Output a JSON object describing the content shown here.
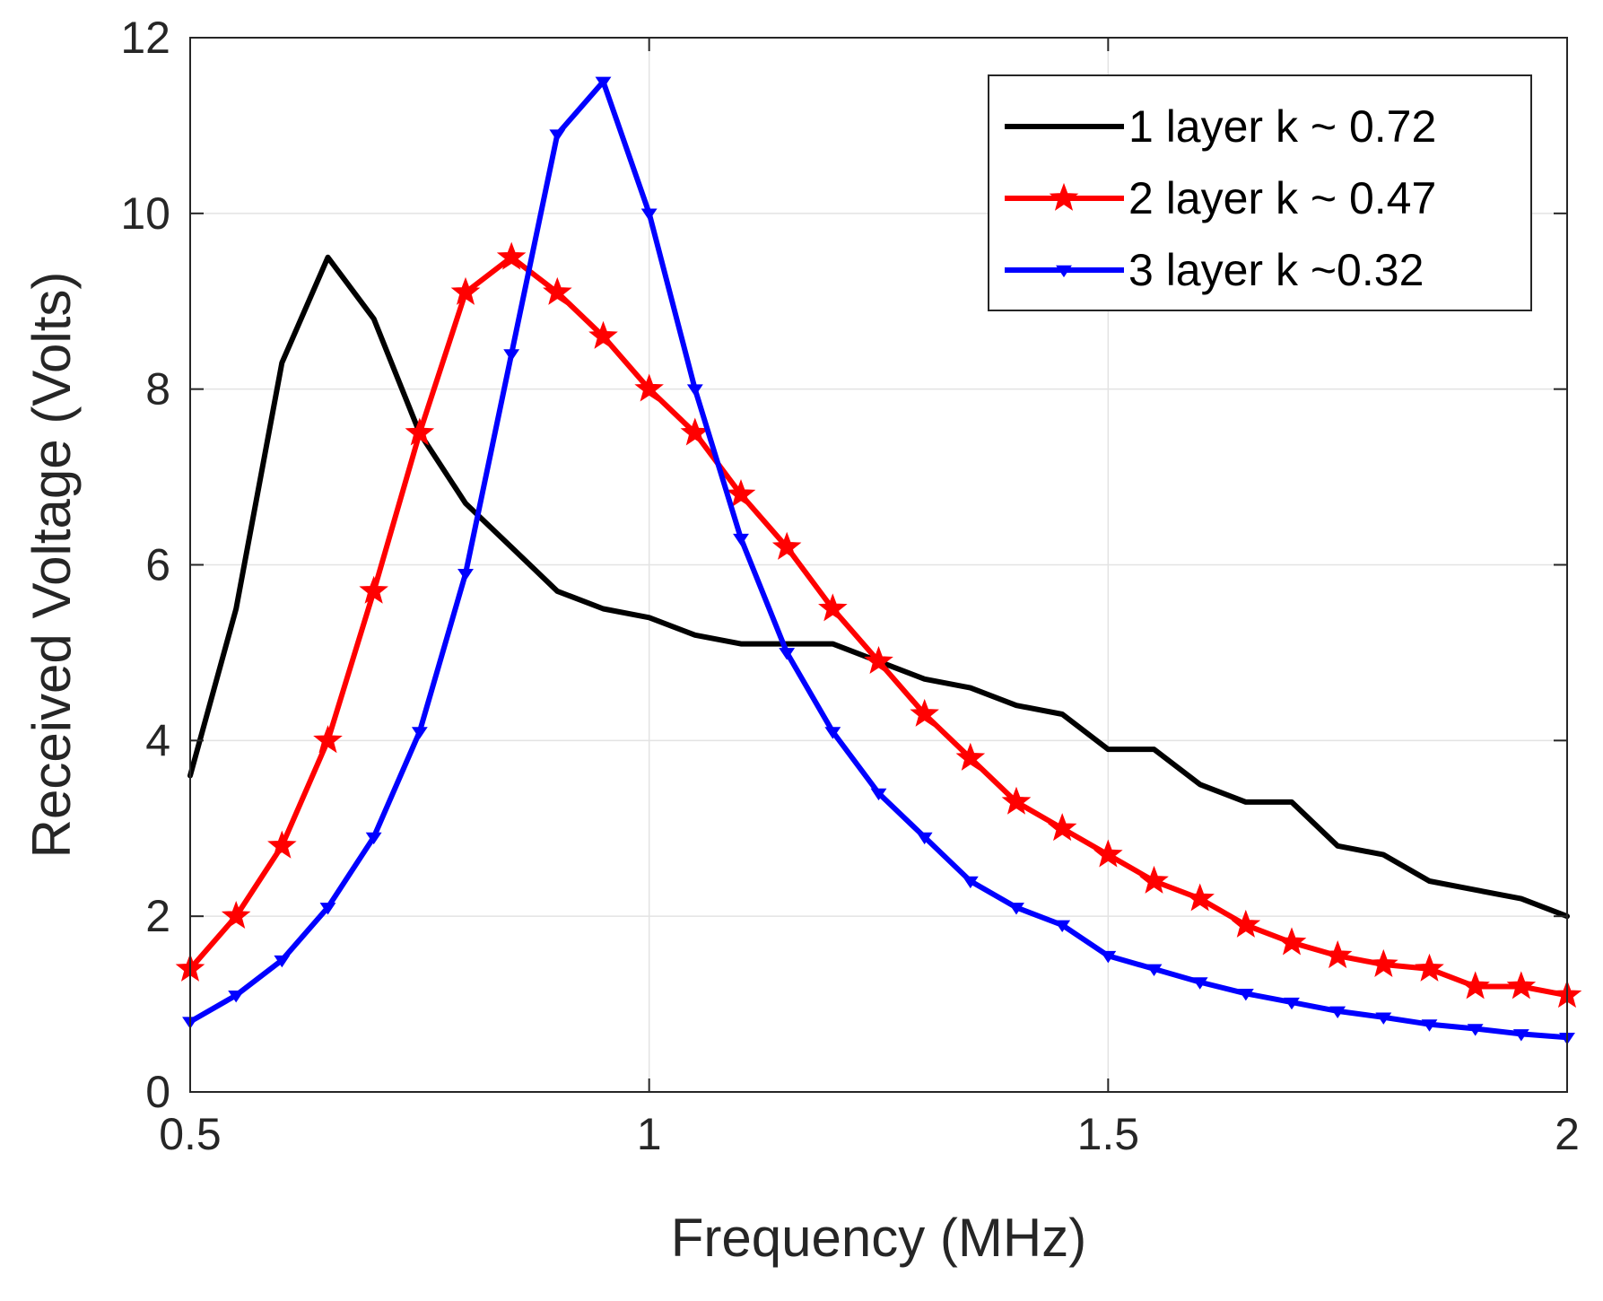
{
  "chart_data": {
    "type": "line",
    "title": "",
    "xlabel": "Frequency (MHz)",
    "ylabel": "Received Voltage (Volts)",
    "xlim": [
      0.5,
      2
    ],
    "ylim": [
      0,
      12
    ],
    "xticks": [
      0.5,
      1,
      1.5,
      2
    ],
    "xtick_labels": [
      "0.5",
      "1",
      "1.5",
      "2"
    ],
    "yticks": [
      0,
      2,
      4,
      6,
      8,
      10,
      12
    ],
    "ytick_labels": [
      "0",
      "2",
      "4",
      "6",
      "8",
      "10",
      "12"
    ],
    "grid": true,
    "legend_position": "top-right",
    "x": [
      0.5,
      0.55,
      0.6,
      0.65,
      0.7,
      0.75,
      0.8,
      0.85,
      0.9,
      0.95,
      1.0,
      1.05,
      1.1,
      1.15,
      1.2,
      1.25,
      1.3,
      1.35,
      1.4,
      1.45,
      1.5,
      1.55,
      1.6,
      1.65,
      1.7,
      1.75,
      1.8,
      1.85,
      1.9,
      1.95,
      2.0
    ],
    "series": [
      {
        "name": "1 layer k ~ 0.72",
        "color": "#000000",
        "marker": "none",
        "values": [
          3.6,
          5.5,
          8.3,
          9.5,
          8.8,
          7.5,
          6.7,
          6.2,
          5.7,
          5.5,
          5.4,
          5.2,
          5.1,
          5.1,
          5.1,
          4.9,
          4.7,
          4.6,
          4.4,
          4.3,
          3.9,
          3.9,
          3.5,
          3.3,
          3.3,
          2.8,
          2.7,
          2.4,
          2.3,
          2.2,
          2.0
        ]
      },
      {
        "name": "2 layer k ~ 0.47",
        "color": "#ff0000",
        "marker": "star",
        "values": [
          1.4,
          2.0,
          2.8,
          4.0,
          5.7,
          7.5,
          9.1,
          9.5,
          9.1,
          8.6,
          8.0,
          7.5,
          6.8,
          6.2,
          5.5,
          4.9,
          4.3,
          3.8,
          3.3,
          3.0,
          2.7,
          2.4,
          2.2,
          1.9,
          1.7,
          1.55,
          1.45,
          1.4,
          1.2,
          1.2,
          1.1
        ]
      },
      {
        "name": "3 layer k ~0.32",
        "color": "#0000ff",
        "marker": "triangle-down",
        "values": [
          0.8,
          1.1,
          1.5,
          2.1,
          2.9,
          4.1,
          5.9,
          8.4,
          10.9,
          11.5,
          10.0,
          8.0,
          6.3,
          5.0,
          4.1,
          3.4,
          2.9,
          2.4,
          2.1,
          1.9,
          1.55,
          1.4,
          1.25,
          1.12,
          1.02,
          0.92,
          0.85,
          0.77,
          0.72,
          0.66,
          0.62
        ]
      }
    ]
  }
}
